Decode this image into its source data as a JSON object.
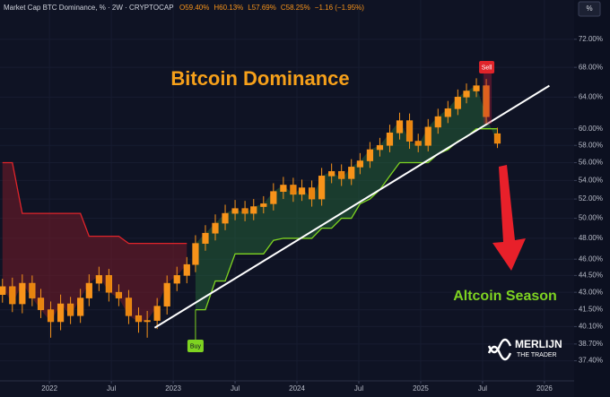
{
  "chart_data": {
    "type": "candlestick",
    "title": "Bitcoin Dominance",
    "symbol": "Market Cap BTC Dominance, % · 2W · CRYPTOCAP",
    "header_values": [
      "O59.40%",
      "H60.13%",
      "L57.69%",
      "C58.25%",
      "−1.16 (−1.95%)"
    ],
    "unit_button": "%",
    "color": "#f7931a",
    "log_scale": true,
    "grid": true,
    "x": [
      2021.62,
      2021.7,
      2021.78,
      2021.86,
      2021.93,
      2022.01,
      2022.09,
      2022.17,
      2022.25,
      2022.32,
      2022.4,
      2022.48,
      2022.56,
      2022.64,
      2022.72,
      2022.79,
      2022.87,
      2022.95,
      2023.03,
      2023.11,
      2023.18,
      2023.26,
      2023.34,
      2023.42,
      2023.5,
      2023.58,
      2023.65,
      2023.73,
      2023.81,
      2023.89,
      2023.97,
      2024.04,
      2024.12,
      2024.2,
      2024.28,
      2024.36,
      2024.44,
      2024.51,
      2024.59,
      2024.67,
      2024.75,
      2024.83,
      2024.91,
      2024.98,
      2025.06,
      2025.14,
      2025.22,
      2025.3,
      2025.37,
      2025.45,
      2025.53,
      2025.62
    ],
    "open": [
      42.8,
      43.5,
      42.0,
      43.8,
      42.5,
      41.5,
      40.5,
      42.0,
      41.0,
      42.5,
      43.8,
      44.5,
      43.0,
      42.5,
      41.0,
      40.5,
      40.6,
      41.8,
      43.8,
      44.5,
      45.5,
      47.5,
      48.5,
      49.5,
      50.5,
      51.0,
      50.5,
      51.2,
      51.5,
      52.8,
      53.5,
      52.5,
      53.2,
      52.0,
      54.5,
      55.0,
      54.2,
      55.5,
      56.2,
      57.5,
      58.0,
      59.5,
      61.0,
      58.5,
      58.0,
      60.2,
      61.5,
      62.5,
      64.0,
      64.8,
      65.5,
      59.4
    ],
    "high": [
      44.2,
      44.3,
      44.6,
      44.5,
      43.3,
      42.2,
      42.8,
      42.6,
      43.3,
      44.6,
      45.3,
      45.1,
      43.7,
      43.2,
      41.7,
      41.4,
      42.5,
      44.5,
      45.3,
      46.2,
      48.3,
      49.3,
      50.4,
      51.4,
      51.9,
      51.8,
      52.0,
      52.3,
      53.7,
      54.4,
      54.3,
      54.1,
      54.0,
      55.4,
      55.9,
      55.8,
      56.4,
      57.1,
      58.4,
      58.9,
      60.5,
      62.0,
      61.9,
      59.4,
      61.2,
      62.5,
      63.5,
      65.0,
      65.8,
      66.5,
      66.4,
      60.13
    ],
    "low": [
      42.1,
      41.3,
      41.2,
      41.8,
      40.8,
      39.2,
      39.8,
      40.3,
      40.4,
      41.8,
      43.1,
      42.2,
      41.8,
      40.3,
      39.6,
      39.2,
      39.9,
      41.1,
      43.1,
      43.8,
      44.8,
      46.8,
      47.8,
      48.8,
      49.8,
      49.7,
      49.8,
      50.5,
      50.8,
      52.0,
      51.7,
      51.8,
      51.2,
      51.3,
      53.7,
      53.4,
      53.5,
      54.7,
      55.4,
      56.7,
      57.2,
      58.7,
      57.6,
      57.2,
      57.3,
      59.4,
      60.7,
      61.7,
      63.2,
      64.0,
      60.6,
      57.69
    ],
    "close": [
      43.5,
      42.0,
      43.8,
      42.5,
      41.5,
      40.5,
      42.0,
      41.0,
      42.5,
      43.8,
      44.5,
      43.0,
      42.5,
      41.0,
      40.5,
      40.6,
      41.8,
      43.8,
      44.5,
      45.5,
      47.5,
      48.5,
      49.5,
      50.5,
      51.0,
      50.5,
      51.2,
      51.5,
      52.8,
      53.5,
      52.5,
      53.2,
      52.0,
      54.5,
      55.0,
      54.2,
      55.5,
      56.2,
      57.5,
      58.0,
      59.5,
      61.0,
      58.5,
      58.0,
      60.2,
      61.5,
      62.5,
      64.0,
      64.8,
      65.5,
      61.5,
      58.25
    ],
    "resistance_band": {
      "color": "#e0242a",
      "fill": "rgba(120,28,40,0.55)",
      "values": [
        56.0,
        56.0,
        50.5,
        50.5,
        50.5,
        50.5,
        50.5,
        50.5,
        50.5,
        48.2,
        48.2,
        48.2,
        48.2,
        47.5,
        47.5,
        47.5,
        47.5,
        47.5,
        47.5,
        47.5,
        null,
        null,
        null,
        null,
        null,
        null,
        null,
        null,
        null,
        null,
        null,
        null,
        null,
        null,
        null,
        null,
        null,
        null,
        null,
        null,
        null,
        null,
        null,
        null,
        null,
        null,
        null,
        null,
        null,
        null,
        null,
        null
      ]
    },
    "support_band": {
      "color": "#7ed321",
      "fill": "rgba(40,110,60,0.45)",
      "values": [
        null,
        null,
        null,
        null,
        null,
        null,
        null,
        null,
        null,
        null,
        null,
        null,
        null,
        null,
        null,
        null,
        null,
        null,
        null,
        null,
        41.5,
        41.5,
        44.0,
        44.0,
        46.5,
        46.5,
        46.5,
        46.5,
        47.8,
        48.0,
        48.0,
        48.0,
        48.0,
        49.0,
        49.0,
        50.0,
        50.0,
        51.5,
        52.0,
        53.0,
        54.5,
        56.0,
        56.0,
        56.0,
        56.0,
        57.0,
        57.5,
        58.5,
        59.0,
        60.0,
        60.0,
        60.0
      ]
    },
    "trend_line": {
      "color": "#ffffff",
      "x": [
        2022.85,
        2026.04
      ],
      "values": [
        40.0,
        65.5
      ]
    },
    "annotations": {
      "altcoin_season": "Altcoin Season",
      "buy": "Buy",
      "sell": "Sell"
    },
    "logo": {
      "name": "MERLIJN",
      "tagline": "THE TRADER"
    },
    "xlim": [
      2021.6,
      2026.24
    ],
    "xticks": [
      2022,
      {
        "value": 2022.5,
        "label": "Jul"
      },
      2023,
      {
        "value": 2023.5,
        "label": "Jul"
      },
      2024,
      {
        "value": 2024.5,
        "label": "Jul"
      },
      2025,
      {
        "value": 2025.5,
        "label": "Jul"
      },
      2026
    ],
    "ylim": [
      35.9,
      78
    ],
    "yticks": [
      {
        "value": 37.4,
        "label": "37.40%"
      },
      {
        "value": 38.7,
        "label": "38.70%"
      },
      {
        "value": 40.1,
        "label": "40.10%"
      },
      {
        "value": 41.5,
        "label": "41.50%"
      },
      {
        "value": 43,
        "label": "43.00%"
      },
      {
        "value": 44.5,
        "label": "44.50%"
      },
      {
        "value": 46,
        "label": "46.00%"
      },
      {
        "value": 48,
        "label": "48.00%"
      },
      {
        "value": 50,
        "label": "50.00%"
      },
      {
        "value": 52,
        "label": "52.00%"
      },
      {
        "value": 54,
        "label": "54.00%"
      },
      {
        "value": 56,
        "label": "56.00%"
      },
      {
        "value": 58,
        "label": "58.00%"
      },
      {
        "value": 60,
        "label": "60.00%"
      },
      {
        "value": 64,
        "label": "64.00%"
      },
      {
        "value": 68,
        "label": "68.00%"
      },
      {
        "value": 72,
        "label": "72.00%"
      }
    ]
  }
}
